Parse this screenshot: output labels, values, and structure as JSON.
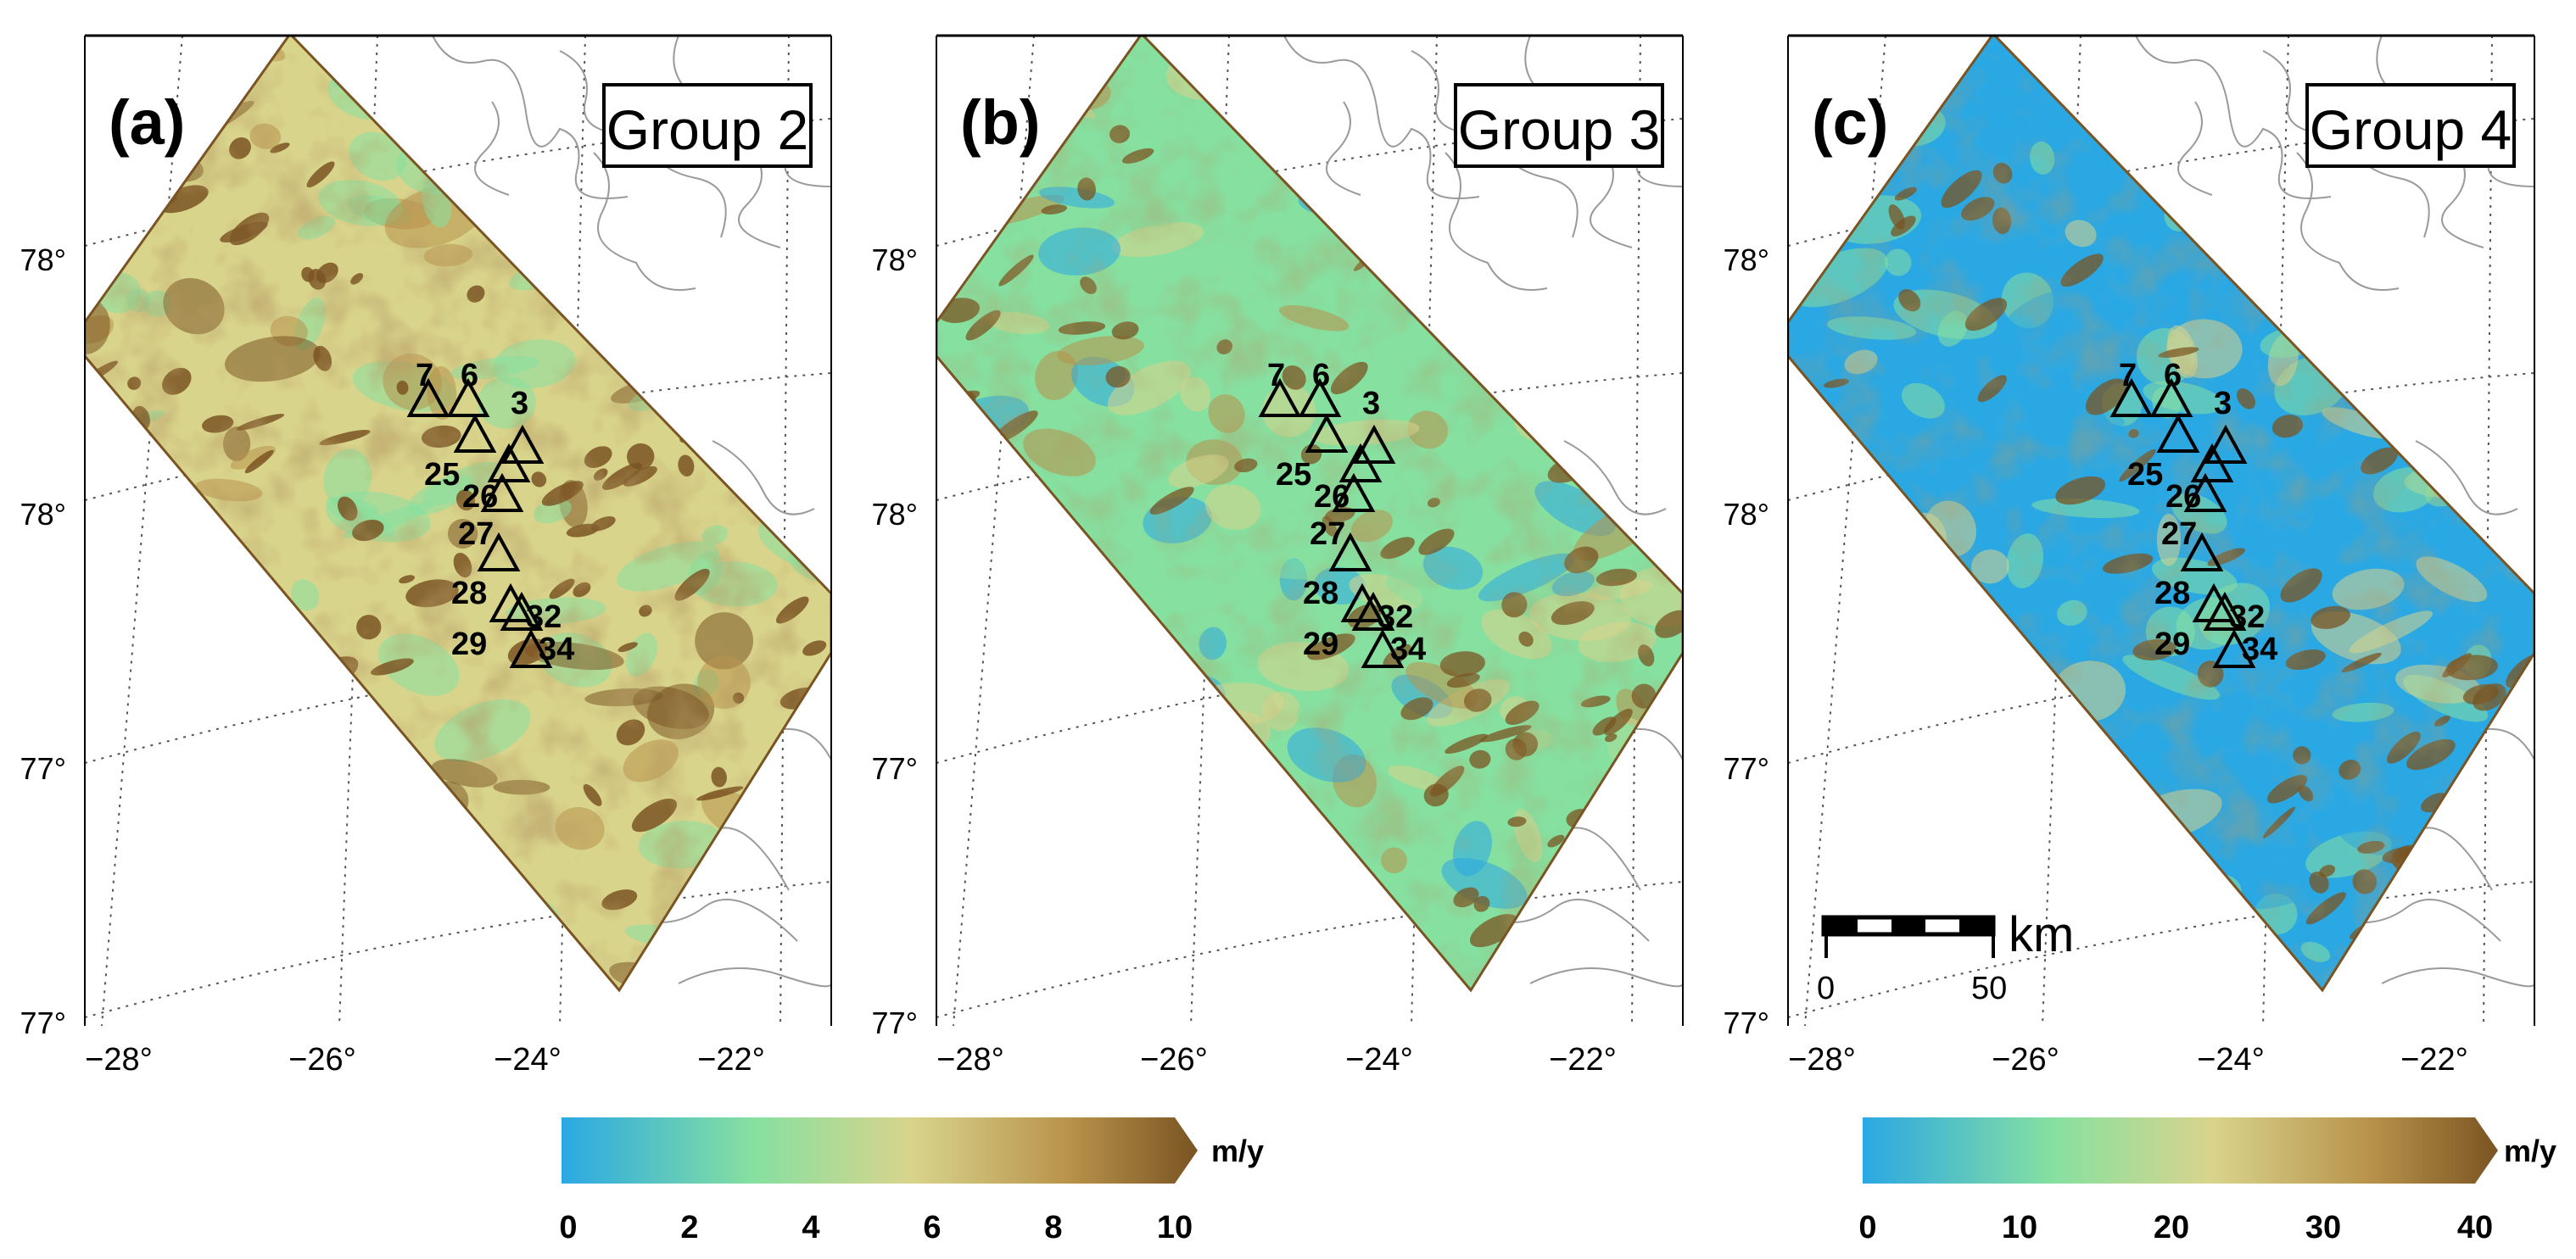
{
  "panels": [
    {
      "id": "a",
      "letter": "(a)",
      "group": "Group 2",
      "lat_labels": [
        "78°",
        "78°",
        "77°",
        "77°"
      ],
      "lon_labels": [
        "−28°",
        "−26°",
        "−24°",
        "−22°"
      ],
      "stations": [
        "7",
        "6",
        "3",
        "25",
        "26",
        "27",
        "28",
        "29",
        "32",
        "34"
      ],
      "palette": "low"
    },
    {
      "id": "b",
      "letter": "(b)",
      "group": "Group 3",
      "lat_labels": [
        "78°",
        "78°",
        "77°",
        "77°"
      ],
      "lon_labels": [
        "−28°",
        "−26°",
        "−24°",
        "−22°"
      ],
      "stations": [
        "7",
        "6",
        "3",
        "25",
        "26",
        "27",
        "28",
        "29",
        "32",
        "34"
      ],
      "palette": "mid"
    },
    {
      "id": "c",
      "letter": "(c)",
      "group": "Group 4",
      "lat_labels": [
        "78°",
        "78°",
        "77°",
        "77°"
      ],
      "lon_labels": [
        "−28°",
        "−26°",
        "−24°",
        "−22°"
      ],
      "stations": [
        "7",
        "6",
        "3",
        "25",
        "26",
        "27",
        "28",
        "29",
        "32",
        "34"
      ],
      "palette": "high"
    }
  ],
  "scalebar": {
    "unit": "km",
    "min": "0",
    "max": "50"
  },
  "colorbars": [
    {
      "unit": "m/y",
      "ticks": [
        "0",
        "2",
        "4",
        "6",
        "8",
        "10"
      ],
      "range": [
        0,
        10
      ]
    },
    {
      "unit": "m/y",
      "ticks": [
        "0",
        "10",
        "20",
        "30",
        "40"
      ],
      "range": [
        0,
        40
      ]
    }
  ],
  "colors": {
    "cyan": "#2aa8e4",
    "green": "#86e0a0",
    "yellow": "#d9d48c",
    "tan": "#b8924a",
    "brown": "#7a5422",
    "coast": "#9a9a9a",
    "grid": "#555555"
  }
}
